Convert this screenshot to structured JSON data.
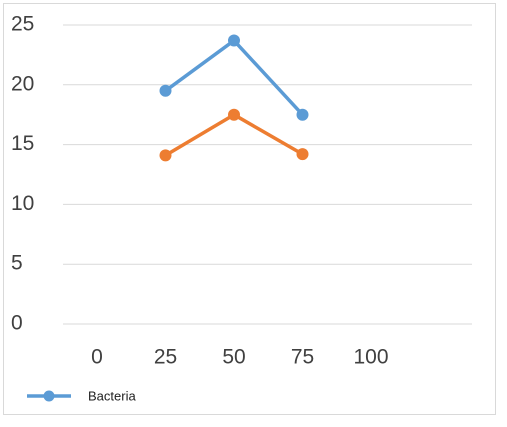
{
  "chart_data": {
    "type": "line",
    "x": [
      0,
      25,
      50,
      75,
      100
    ],
    "xticks": [
      "0",
      "25",
      "50",
      "75",
      "100"
    ],
    "yticks": [
      "0",
      "5",
      "10",
      "15",
      "20",
      "25"
    ],
    "ylim": [
      0,
      25
    ],
    "grid": true,
    "legend_position": "bottom-left",
    "series": [
      {
        "name": "Bacteria",
        "color": "#5b9bd5",
        "points": [
          [
            25,
            19.5
          ],
          [
            50,
            23.7
          ],
          [
            75,
            17.5
          ]
        ]
      },
      {
        "color": "#ed7d31",
        "points": [
          [
            25,
            14.1
          ],
          [
            50,
            17.5
          ],
          [
            75,
            14.2
          ]
        ]
      }
    ]
  }
}
